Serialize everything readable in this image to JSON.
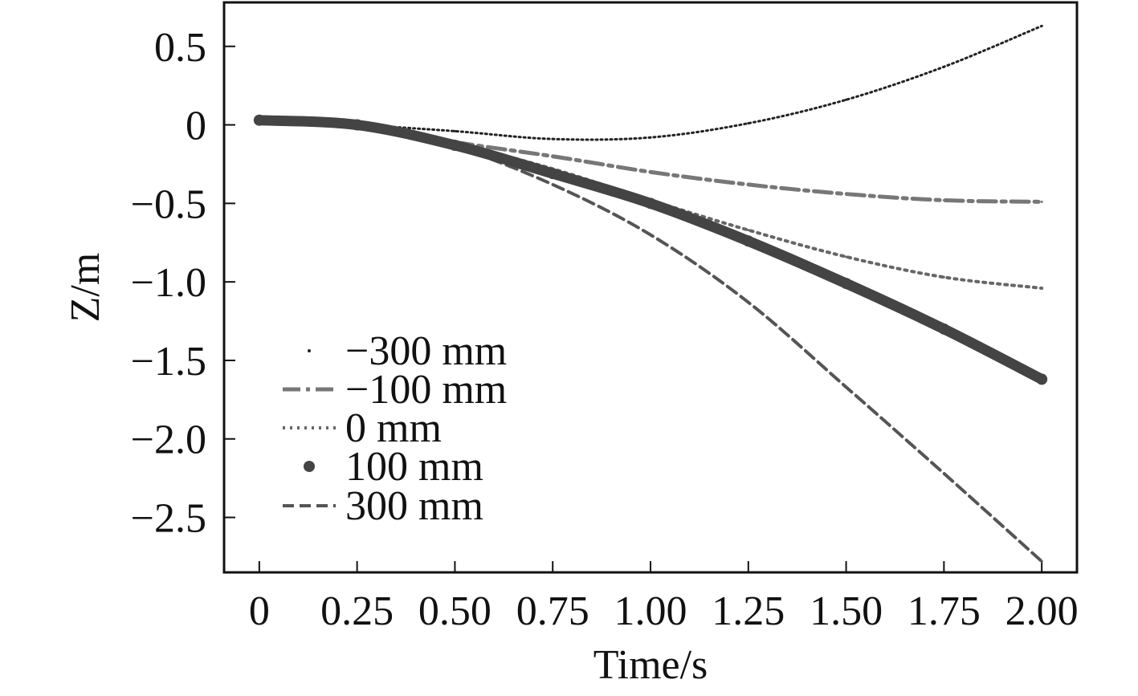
{
  "chart_data": {
    "type": "line",
    "title": "",
    "xlabel": "Time/s",
    "ylabel": "Z/m",
    "xlim": [
      -0.09,
      2.09
    ],
    "ylim": [
      -2.85,
      0.78
    ],
    "grid": false,
    "legend_position": "bottom-left",
    "x_ticks": [
      0,
      0.25,
      0.5,
      0.75,
      1.0,
      1.25,
      1.5,
      1.75,
      2.0
    ],
    "x_tick_labels": [
      "0",
      "0.25",
      "0.50",
      "0.75",
      "1.00",
      "1.25",
      "1.50",
      "1.75",
      "2.00"
    ],
    "y_ticks": [
      0.5,
      0,
      -0.5,
      -1.0,
      -1.5,
      -2.0,
      -2.5
    ],
    "y_tick_labels": [
      "0.5",
      "0",
      "−0.5",
      "−1.0",
      "−1.5",
      "−2.0",
      "−2.5"
    ],
    "x": [
      0,
      0.25,
      0.5,
      0.75,
      1.0,
      1.25,
      1.5,
      1.75,
      2.0
    ],
    "series": [
      {
        "name": "−300 mm",
        "style": "dotted-fine",
        "color": "#222222",
        "values": [
          0.03,
          0.0,
          -0.04,
          -0.09,
          -0.08,
          0.01,
          0.16,
          0.37,
          0.63
        ]
      },
      {
        "name": "−100 mm",
        "style": "dashdot",
        "color": "#777777",
        "values": [
          0.03,
          0.0,
          -0.11,
          -0.2,
          -0.3,
          -0.38,
          -0.44,
          -0.48,
          -0.49
        ]
      },
      {
        "name": "0 mm",
        "style": "dotted",
        "color": "#666666",
        "values": [
          0.03,
          0.0,
          -0.12,
          -0.28,
          -0.48,
          -0.67,
          -0.84,
          -0.97,
          -1.04
        ]
      },
      {
        "name": "100 mm",
        "style": "points",
        "color": "#444444",
        "values": [
          0.03,
          0.0,
          -0.13,
          -0.31,
          -0.5,
          -0.74,
          -1.01,
          -1.3,
          -1.62
        ]
      },
      {
        "name": "300 mm",
        "style": "dashed",
        "color": "#555555",
        "values": [
          0.03,
          0.0,
          -0.14,
          -0.38,
          -0.7,
          -1.13,
          -1.67,
          -2.22,
          -2.78
        ]
      }
    ]
  }
}
